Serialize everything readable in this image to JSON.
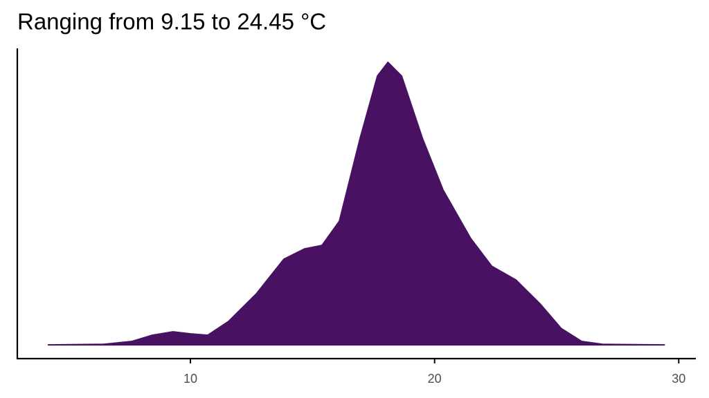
{
  "chart_data": {
    "type": "area",
    "title": "Ranging from 9.15 to 24.45 °C",
    "x": [
      4.18,
      6.45,
      7.59,
      8.44,
      9.29,
      10,
      10.71,
      11.56,
      12.7,
      13.83,
      14.68,
      15.39,
      16.1,
      16.95,
      17.66,
      18.09,
      18.65,
      19.5,
      20.35,
      21.48,
      22.34,
      23.33,
      24.33,
      25.18,
      26.03,
      26.88,
      29.41
    ],
    "values": [
      0,
      0.0003,
      0.0017,
      0.0048,
      0.0065,
      0.0055,
      0.0048,
      0.0116,
      0.0253,
      0.0425,
      0.0476,
      0.0493,
      0.0613,
      0.1024,
      0.1332,
      0.14,
      0.1332,
      0.1024,
      0.0767,
      0.0527,
      0.039,
      0.0322,
      0.0202,
      0.0082,
      0.0017,
      0.0003,
      0
    ],
    "color": "#481162",
    "xlim": [
      2.91,
      30.7
    ],
    "xticks": [
      10,
      20,
      30
    ],
    "ylim": [
      -0.0068,
      0.1469
    ],
    "grid": false
  }
}
